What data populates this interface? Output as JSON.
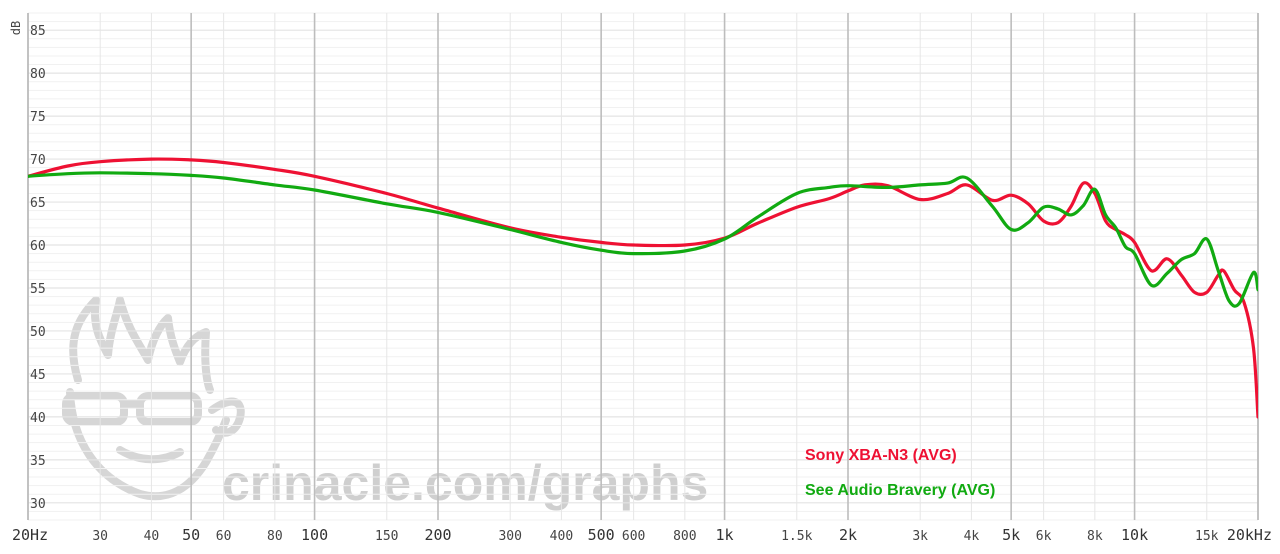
{
  "watermark_text": "crinacle.com/graphs",
  "chart_data": {
    "type": "line",
    "title": "",
    "ylabel": "dB",
    "xlabel": "",
    "x_scale": "log",
    "xlim": [
      20,
      20000
    ],
    "ylim": [
      28,
      87
    ],
    "x_ticks": [
      {
        "v": 20,
        "label": "20Hz",
        "major": true
      },
      {
        "v": 30,
        "label": "30"
      },
      {
        "v": 40,
        "label": "40"
      },
      {
        "v": 50,
        "label": "50",
        "major": true
      },
      {
        "v": 60,
        "label": "60"
      },
      {
        "v": 80,
        "label": "80"
      },
      {
        "v": 100,
        "label": "100",
        "major": true
      },
      {
        "v": 150,
        "label": "150"
      },
      {
        "v": 200,
        "label": "200",
        "major": true
      },
      {
        "v": 300,
        "label": "300"
      },
      {
        "v": 400,
        "label": "400"
      },
      {
        "v": 500,
        "label": "500",
        "major": true
      },
      {
        "v": 600,
        "label": "600"
      },
      {
        "v": 800,
        "label": "800"
      },
      {
        "v": 1000,
        "label": "1k",
        "major": true
      },
      {
        "v": 1500,
        "label": "1.5k"
      },
      {
        "v": 2000,
        "label": "2k",
        "major": true
      },
      {
        "v": 3000,
        "label": "3k"
      },
      {
        "v": 4000,
        "label": "4k"
      },
      {
        "v": 5000,
        "label": "5k",
        "major": true
      },
      {
        "v": 6000,
        "label": "6k"
      },
      {
        "v": 8000,
        "label": "8k"
      },
      {
        "v": 10000,
        "label": "10k",
        "major": true
      },
      {
        "v": 15000,
        "label": "15k"
      },
      {
        "v": 20000,
        "label": "20kHz",
        "major": true
      }
    ],
    "y_ticks": [
      30,
      35,
      40,
      45,
      50,
      55,
      60,
      65,
      70,
      75,
      80,
      85
    ],
    "grid": true,
    "legend_position": "bottom-right",
    "series": [
      {
        "name": "Sony XBA-N3 (AVG)",
        "color": "#ee1133",
        "points": [
          [
            20,
            68.0
          ],
          [
            25,
            69.2
          ],
          [
            30,
            69.7
          ],
          [
            40,
            70.0
          ],
          [
            50,
            69.9
          ],
          [
            60,
            69.6
          ],
          [
            80,
            68.8
          ],
          [
            100,
            68.0
          ],
          [
            150,
            66.0
          ],
          [
            200,
            64.3
          ],
          [
            300,
            62.0
          ],
          [
            400,
            60.9
          ],
          [
            500,
            60.3
          ],
          [
            600,
            60.0
          ],
          [
            800,
            60.0
          ],
          [
            1000,
            60.8
          ],
          [
            1200,
            62.5
          ],
          [
            1500,
            64.4
          ],
          [
            1800,
            65.4
          ],
          [
            2000,
            66.3
          ],
          [
            2200,
            67.0
          ],
          [
            2500,
            66.9
          ],
          [
            3000,
            65.3
          ],
          [
            3500,
            66.0
          ],
          [
            3900,
            67.0
          ],
          [
            4500,
            65.2
          ],
          [
            5000,
            65.8
          ],
          [
            5500,
            64.8
          ],
          [
            6000,
            62.8
          ],
          [
            6500,
            62.6
          ],
          [
            7000,
            64.5
          ],
          [
            7500,
            67.2
          ],
          [
            8000,
            66.0
          ],
          [
            8500,
            62.8
          ],
          [
            9000,
            61.8
          ],
          [
            9500,
            61.2
          ],
          [
            10000,
            60.3
          ],
          [
            11000,
            57.0
          ],
          [
            12000,
            58.4
          ],
          [
            13000,
            56.5
          ],
          [
            14000,
            54.5
          ],
          [
            15000,
            54.5
          ],
          [
            16000,
            56.5
          ],
          [
            16500,
            57.0
          ],
          [
            17500,
            54.8
          ],
          [
            18500,
            53.3
          ],
          [
            19500,
            48.0
          ],
          [
            20000,
            40.0
          ]
        ]
      },
      {
        "name": "See Audio Bravery (AVG)",
        "color": "#11aa11",
        "points": [
          [
            20,
            68.0
          ],
          [
            25,
            68.3
          ],
          [
            30,
            68.4
          ],
          [
            40,
            68.3
          ],
          [
            50,
            68.1
          ],
          [
            60,
            67.8
          ],
          [
            80,
            67.0
          ],
          [
            100,
            66.4
          ],
          [
            150,
            64.8
          ],
          [
            200,
            63.8
          ],
          [
            300,
            61.8
          ],
          [
            400,
            60.3
          ],
          [
            500,
            59.4
          ],
          [
            600,
            59.0
          ],
          [
            800,
            59.3
          ],
          [
            1000,
            60.7
          ],
          [
            1200,
            63.2
          ],
          [
            1500,
            66.0
          ],
          [
            1800,
            66.7
          ],
          [
            2000,
            66.9
          ],
          [
            2500,
            66.7
          ],
          [
            3000,
            67.0
          ],
          [
            3500,
            67.2
          ],
          [
            3900,
            67.8
          ],
          [
            4500,
            64.5
          ],
          [
            5000,
            61.8
          ],
          [
            5500,
            62.6
          ],
          [
            6000,
            64.4
          ],
          [
            6500,
            64.2
          ],
          [
            7000,
            63.5
          ],
          [
            7500,
            64.6
          ],
          [
            8000,
            66.5
          ],
          [
            8500,
            63.5
          ],
          [
            9000,
            62.0
          ],
          [
            9500,
            59.8
          ],
          [
            10000,
            59.0
          ],
          [
            11000,
            55.3
          ],
          [
            12000,
            56.7
          ],
          [
            13000,
            58.3
          ],
          [
            14000,
            59.0
          ],
          [
            15000,
            60.7
          ],
          [
            16000,
            57.0
          ],
          [
            17000,
            53.5
          ],
          [
            18000,
            53.2
          ],
          [
            19500,
            56.8
          ],
          [
            20000,
            54.8
          ]
        ]
      }
    ]
  }
}
